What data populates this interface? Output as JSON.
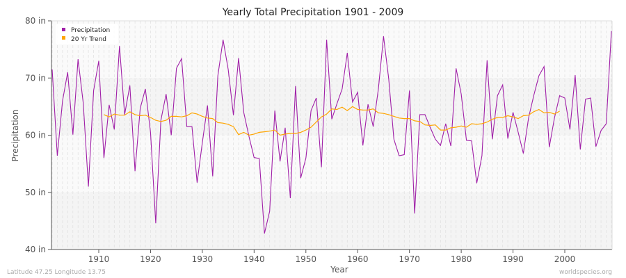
{
  "chart_data": {
    "type": "line",
    "title": "Yearly Total Precipitation 1901 - 2009",
    "xlabel": "Year",
    "ylabel": "Precipitation",
    "xlim": [
      1901,
      2009
    ],
    "ylim": [
      40,
      80
    ],
    "x_ticks": [
      1910,
      1920,
      1930,
      1940,
      1950,
      1960,
      1970,
      1980,
      1990,
      2000
    ],
    "y_ticks": [
      {
        "v": 40,
        "label": "40 in"
      },
      {
        "v": 50,
        "label": "50 in"
      },
      {
        "v": 60,
        "label": "60 in"
      },
      {
        "v": 70,
        "label": "70 in"
      },
      {
        "v": 80,
        "label": "80 in"
      }
    ],
    "grid": true,
    "legend_position": "top-left",
    "series": [
      {
        "name": "Precipitation",
        "color": "#a020a8",
        "x_start": 1901,
        "values": [
          71.5,
          56.4,
          66,
          71,
          60.1,
          73.3,
          65.6,
          51,
          67.8,
          73,
          56,
          65.3,
          61,
          75.6,
          63.6,
          68.7,
          53.7,
          64.7,
          68.1,
          60.5,
          44.6,
          62.6,
          67.2,
          60,
          71.7,
          73.4,
          61.5,
          61.5,
          51.7,
          58.7,
          65.2,
          52.8,
          70.4,
          76.7,
          71.5,
          63.5,
          73.5,
          64,
          59.8,
          56.1,
          55.9,
          42.8,
          46.7,
          64.3,
          55.4,
          61.3,
          49,
          68.6,
          52.5,
          56,
          64.3,
          66.5,
          54.4,
          76.7,
          62.8,
          65.5,
          68.1,
          74.4,
          65.8,
          67.5,
          58.2,
          65.4,
          61.5,
          68.1,
          77.3,
          69.8,
          59.3,
          56.4,
          56.6,
          67.8,
          46.3,
          63.6,
          63.6,
          61.4,
          59.3,
          58.2,
          62,
          58.1,
          71.7,
          67.2,
          59.1,
          59,
          51.6,
          56.4,
          73.1,
          59.3,
          66.9,
          68.8,
          59.4,
          64,
          60.5,
          56.8,
          63,
          66.9,
          70.4,
          72,
          57.9,
          63,
          66.9,
          66.5,
          61,
          70.5,
          57.5,
          66.3,
          66.5,
          58,
          60.8,
          62,
          78.2
        ]
      },
      {
        "name": "20 Yr Trend",
        "color": "#ffa500",
        "x_start": 1911,
        "values": [
          63.6,
          63.2,
          63.7,
          63.5,
          63.5,
          64.1,
          63.6,
          63.4,
          63.5,
          63.1,
          62.6,
          62.4,
          62.6,
          63.3,
          63.3,
          63.2,
          63.4,
          63.9,
          63.7,
          63.3,
          63.0,
          62.9,
          62.2,
          62.1,
          61.9,
          61.5,
          60.1,
          60.5,
          60.0,
          60.2,
          60.5,
          60.6,
          60.7,
          60.9,
          60.0,
          60.2,
          60.3,
          60.3,
          60.5,
          60.9,
          61.4,
          62.3,
          63.2,
          63.7,
          64.6,
          64.5,
          64.9,
          64.3,
          65.0,
          64.5,
          64.4,
          64.4,
          64.6,
          63.9,
          63.8,
          63.6,
          63.3,
          63.0,
          62.9,
          62.9,
          62.5,
          62.4,
          61.8,
          61.7,
          61.8,
          60.9,
          60.9,
          61.3,
          61.4,
          61.6,
          61.4,
          62.0,
          61.9,
          62.0,
          62.3,
          62.8,
          63.1,
          63.1,
          63.4,
          63.2,
          62.9,
          63.4,
          63.5,
          64.1,
          64.5,
          63.9,
          64.0,
          63.7,
          64.2
        ]
      }
    ]
  },
  "footer": {
    "location": "Latitude 47.25 Longitude 13.75",
    "source": "worldspecies.org"
  }
}
